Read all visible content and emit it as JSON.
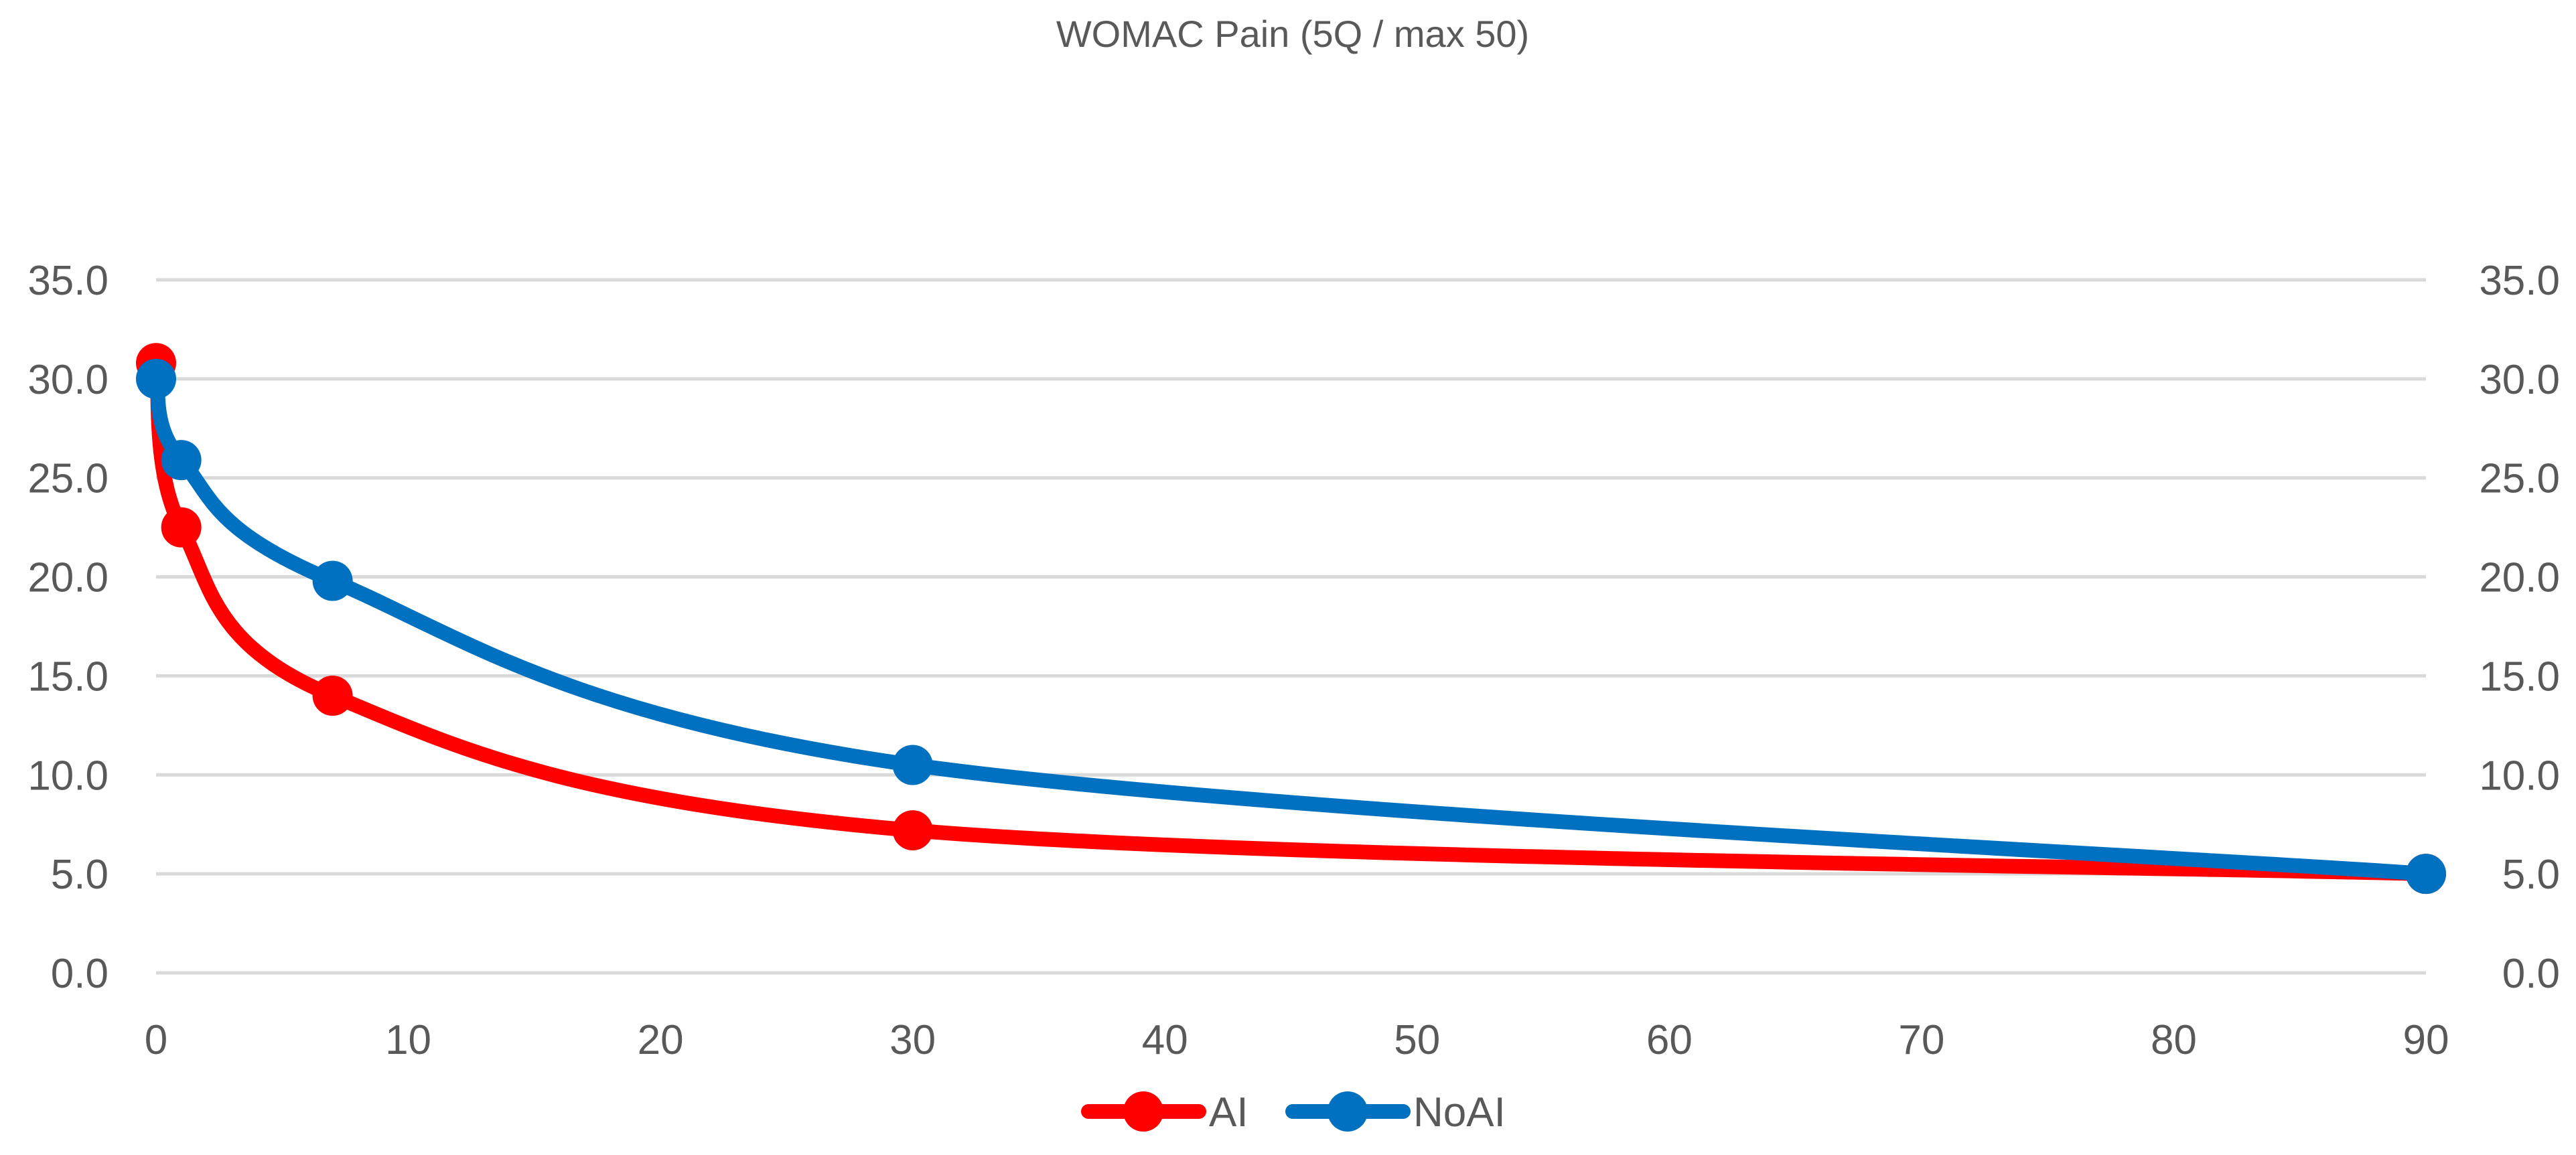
{
  "chart_data": {
    "type": "scatter",
    "title": "WOMAC Pain (5Q / max 50)",
    "xlabel": "",
    "ylabel": "",
    "xlim": [
      0,
      90
    ],
    "ylim": [
      0,
      35
    ],
    "x_ticks": [
      0,
      10,
      20,
      30,
      40,
      50,
      60,
      70,
      80,
      90
    ],
    "y_ticks": [
      "0.0",
      "5.0",
      "10.0",
      "15.0",
      "20.0",
      "25.0",
      "30.0",
      "35.0"
    ],
    "y_ticks_secondary": [
      "0.0",
      "5.0",
      "10.0",
      "15.0",
      "20.0",
      "25.0",
      "30.0",
      "35.0"
    ],
    "grid": true,
    "smooth_lines": true,
    "legend_position": "bottom",
    "series": [
      {
        "name": "AI",
        "color": "#ff0000",
        "x": [
          0,
          1,
          7,
          30,
          90
        ],
        "y": [
          30.8,
          22.5,
          14.0,
          7.2,
          5.0
        ]
      },
      {
        "name": "NoAI",
        "color": "#0070c0",
        "x": [
          0,
          1,
          7,
          30,
          90
        ],
        "y": [
          30.0,
          25.9,
          19.8,
          10.5,
          5.0
        ]
      }
    ]
  }
}
